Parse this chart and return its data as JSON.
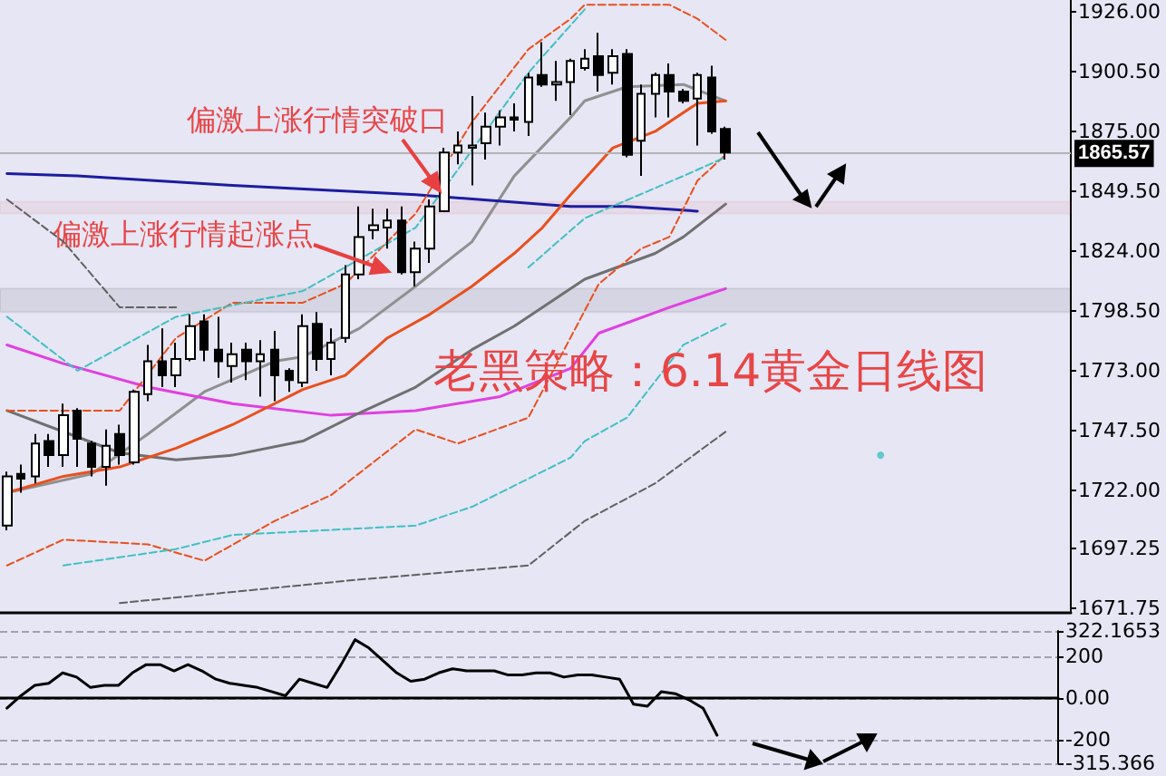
{
  "chart_data": [
    {
      "type": "candlestick",
      "title": "老黑策略：6.14黄金日线图",
      "annotations": [
        "偏激上涨行情突破口",
        "偏激上涨行情起涨点"
      ],
      "tick_labels": "y",
      "marker": "none",
      "categories": [
        null,
        null,
        null,
        null,
        null,
        null,
        null,
        null,
        null,
        null,
        null,
        null,
        null,
        null,
        null,
        null,
        null,
        null,
        null,
        null,
        null,
        null,
        null,
        null,
        null,
        null,
        null,
        null,
        null,
        null,
        null,
        null,
        null,
        null,
        null,
        null,
        null,
        null,
        null,
        null,
        null,
        null,
        null,
        null,
        null,
        null,
        null,
        null,
        null,
        null,
        null,
        null,
        null,
        null,
        null,
        null,
        null,
        null,
        null,
        null,
        null,
        null,
        null,
        null,
        null,
        null,
        null,
        null,
        null,
        null,
        null,
        null,
        null,
        null,
        null,
        null
      ],
      "ylim": [
        1670,
        1931
      ],
      "yticks": [
        {
          "value": 1926,
          "label": "1926.00"
        },
        {
          "value": 1900.5,
          "label": "1900.50"
        },
        {
          "value": 1875,
          "label": "1875.00"
        },
        {
          "value": 1849.5,
          "label": "1849.50"
        },
        {
          "value": 1824,
          "label": "1824.00"
        },
        {
          "value": 1798.5,
          "label": "1798.50"
        },
        {
          "value": 1773,
          "label": "1773.00"
        },
        {
          "value": 1747.5,
          "label": "1747.50"
        },
        {
          "value": 1722,
          "label": "1722.00"
        },
        {
          "value": 1697.25,
          "label": "1697.25"
        },
        {
          "value": 1671.75,
          "label": "1671.75"
        }
      ],
      "ref_lines": [
        {
          "axis": "y",
          "value": 1865.57,
          "label": "1865.57",
          "color": "#b4b4b4"
        }
      ],
      "bands": [
        {
          "axis": "y",
          "from": 1840,
          "to": 1845,
          "color": "#e84040"
        },
        {
          "axis": "y",
          "from": 1798,
          "to": 1808,
          "color": "#000000"
        }
      ],
      "series": [
        {
          "color": "#000000",
          "ohlc": [
            [
              1707,
              1730,
              1705,
              1728
            ],
            [
              1729,
              1733,
              1721,
              1727
            ],
            [
              1728,
              1746,
              1725,
              1742
            ],
            [
              1743,
              1746,
              1732,
              1737
            ],
            [
              1737,
              1759,
              1732,
              1754
            ],
            [
              1756,
              1757,
              1732,
              1744
            ],
            [
              1742,
              1743,
              1728,
              1732
            ],
            [
              1732,
              1748,
              1724,
              1741
            ],
            [
              1746,
              1750,
              1733,
              1737
            ],
            [
              1734,
              1765,
              1733,
              1764
            ],
            [
              1763,
              1784,
              1760,
              1777
            ],
            [
              1777,
              1791,
              1766,
              1771
            ],
            [
              1771,
              1785,
              1766,
              1778
            ],
            [
              1778,
              1797,
              1777,
              1792
            ],
            [
              1794,
              1797,
              1777,
              1782
            ],
            [
              1782,
              1796,
              1770,
              1777
            ],
            [
              1775,
              1785,
              1768,
              1780
            ],
            [
              1782,
              1785,
              1769,
              1777
            ],
            [
              1777,
              1786,
              1762,
              1780
            ],
            [
              1782,
              1790,
              1760,
              1771
            ],
            [
              1773,
              1774,
              1764,
              1769
            ],
            [
              1768,
              1797,
              1766,
              1792
            ],
            [
              1793,
              1798,
              1773,
              1778
            ],
            [
              1778,
              1791,
              1771,
              1785
            ],
            [
              1787,
              1818,
              1785,
              1814
            ],
            [
              1814,
              1843,
              1812,
              1830
            ],
            [
              1833,
              1842,
              1829,
              1835
            ],
            [
              1834,
              1842,
              1825,
              1837
            ],
            [
              1837,
              1843,
              1814,
              1815
            ],
            [
              1815,
              1828,
              1809,
              1825
            ],
            [
              1825,
              1846,
              1819,
              1843
            ],
            [
              1841,
              1868,
              1841,
              1866
            ],
            [
              1866,
              1875,
              1861,
              1869
            ],
            [
              1868,
              1890,
              1852,
              1869
            ],
            [
              1870,
              1883,
              1863,
              1877
            ],
            [
              1877,
              1884,
              1869,
              1881
            ],
            [
              1881,
              1887,
              1875,
              1880
            ],
            [
              1879,
              1900,
              1873,
              1898
            ],
            [
              1899,
              1913,
              1894,
              1895
            ],
            [
              1895,
              1905,
              1888,
              1896
            ],
            [
              1896,
              1906,
              1882,
              1905
            ],
            [
              1902,
              1910,
              1901,
              1906
            ],
            [
              1907,
              1917,
              1892,
              1899
            ],
            [
              1900,
              1910,
              1895,
              1907
            ],
            [
              1908,
              1910,
              1864,
              1865
            ],
            [
              1871,
              1895,
              1856,
              1891
            ],
            [
              1891,
              1900,
              1881,
              1899
            ],
            [
              1899,
              1904,
              1881,
              1892
            ],
            [
              1892,
              1893,
              1887,
              1888
            ],
            [
              1889,
              1900,
              1869,
              1899
            ],
            [
              1898,
              1903,
              1874,
              1875
            ],
            [
              1876,
              1877,
              1863,
              1866
            ],
            null,
            null,
            null,
            null,
            null,
            null,
            null,
            null,
            null,
            null,
            null,
            null,
            null,
            null,
            null,
            null,
            null,
            null,
            null,
            null,
            null,
            null,
            null,
            null
          ]
        },
        {
          "type": "line",
          "color": "#909090",
          "line_style": "solid",
          "values": [
            1721,
            null,
            null,
            null,
            null,
            null,
            1729,
            null,
            null,
            null,
            1746,
            null,
            null,
            null,
            1764,
            null,
            null,
            null,
            null,
            1777,
            null,
            1779,
            null,
            null,
            null,
            1791,
            null,
            null,
            null,
            1809,
            null,
            null,
            null,
            1828,
            null,
            null,
            1856,
            null,
            null,
            null,
            1881,
            1888,
            null,
            null,
            1894,
            null,
            null,
            null,
            1895,
            null,
            null,
            1888,
            null,
            null,
            null,
            null,
            null,
            null,
            null,
            null,
            null,
            null,
            null,
            null,
            null,
            null,
            null,
            null,
            null,
            null,
            null,
            null,
            null,
            null,
            null,
            null
          ]
        },
        {
          "type": "line",
          "color": "#1c1ca0",
          "line_style": "solid",
          "values": [
            1857,
            null,
            null,
            null,
            null,
            1856,
            null,
            null,
            null,
            null,
            null,
            null,
            null,
            null,
            null,
            null,
            1852,
            null,
            null,
            null,
            null,
            null,
            null,
            null,
            null,
            null,
            null,
            null,
            null,
            1848,
            null,
            null,
            null,
            null,
            null,
            null,
            null,
            null,
            null,
            null,
            1843,
            null,
            null,
            null,
            1843,
            null,
            null,
            null,
            null,
            1841,
            null,
            null,
            null,
            null,
            null,
            null,
            null,
            null,
            null,
            null,
            null,
            null,
            null,
            null,
            null,
            null,
            null,
            null,
            null,
            null,
            null,
            null,
            null,
            null,
            null,
            null
          ]
        },
        {
          "type": "line",
          "color": "#e040e0",
          "line_style": "solid",
          "values": [
            1784,
            null,
            null,
            null,
            1776,
            null,
            null,
            null,
            null,
            null,
            1766,
            null,
            null,
            null,
            null,
            null,
            1759,
            null,
            null,
            null,
            null,
            null,
            null,
            1754,
            null,
            null,
            null,
            null,
            null,
            1756,
            null,
            null,
            null,
            null,
            null,
            1762,
            null,
            null,
            null,
            null,
            1774,
            null,
            1789,
            null,
            null,
            null,
            null,
            1800,
            null,
            null,
            null,
            1808,
            null,
            null,
            null,
            null,
            null,
            null,
            null,
            null,
            null,
            null,
            null,
            null,
            null,
            null,
            null,
            null,
            null,
            null,
            null,
            null,
            null,
            null,
            null,
            null
          ]
        },
        {
          "type": "line",
          "color": "#707070",
          "line_style": "solid",
          "values": [
            1756,
            null,
            null,
            null,
            1747,
            null,
            null,
            null,
            1738,
            null,
            null,
            null,
            1735,
            null,
            null,
            null,
            1737,
            null,
            null,
            null,
            null,
            1743,
            null,
            null,
            null,
            1755,
            null,
            null,
            null,
            1766,
            null,
            null,
            null,
            1782,
            null,
            null,
            1792,
            null,
            null,
            null,
            null,
            1812,
            null,
            null,
            null,
            null,
            1823,
            null,
            1830,
            null,
            null,
            1844,
            null,
            null,
            null,
            null,
            null,
            null,
            null,
            null,
            null,
            null,
            null,
            null,
            null,
            null,
            null,
            null,
            null,
            null,
            null,
            null,
            null,
            null,
            null,
            null
          ]
        },
        {
          "type": "line",
          "color": "#e8501c",
          "line_style": "solid",
          "values": [
            1721,
            null,
            null,
            null,
            1728,
            null,
            null,
            null,
            1732,
            null,
            null,
            null,
            1740,
            null,
            null,
            null,
            1750,
            null,
            null,
            null,
            null,
            1765,
            null,
            null,
            1771,
            null,
            null,
            1787,
            null,
            null,
            1797,
            null,
            null,
            1809,
            null,
            null,
            1823,
            null,
            1834,
            null,
            1848,
            null,
            null,
            1868,
            null,
            null,
            1875,
            null,
            null,
            1887,
            null,
            1888,
            null,
            null,
            null,
            null,
            null,
            null,
            null,
            null,
            null,
            null,
            null,
            null,
            null,
            null,
            null,
            null,
            null,
            null,
            null,
            null,
            null,
            null,
            null,
            null
          ]
        },
        {
          "type": "line",
          "color": "#e8501c",
          "line_style": "dashed",
          "values": [
            1756,
            null,
            null,
            null,
            null,
            null,
            null,
            null,
            1756,
            null,
            null,
            null,
            1787,
            null,
            null,
            null,
            1802,
            null,
            null,
            null,
            null,
            1802,
            null,
            null,
            1810,
            null,
            null,
            null,
            null,
            1840,
            null,
            null,
            null,
            1879,
            null,
            null,
            null,
            1910,
            null,
            null,
            1923,
            1929,
            null,
            null,
            null,
            null,
            null,
            1929,
            null,
            1923,
            null,
            1914,
            null,
            null,
            null,
            null,
            null,
            null,
            null,
            null,
            null,
            null,
            null,
            null,
            null,
            null,
            null,
            null,
            null,
            null,
            null,
            null,
            null,
            null,
            null,
            null
          ]
        },
        {
          "type": "line",
          "color": "#e8501c",
          "line_style": "dashed",
          "values": [
            1690,
            null,
            null,
            null,
            1701,
            null,
            null,
            null,
            null,
            null,
            1699,
            null,
            null,
            null,
            1692,
            null,
            null,
            null,
            null,
            1709,
            null,
            null,
            null,
            1720,
            null,
            null,
            null,
            null,
            null,
            1748,
            null,
            null,
            1742,
            null,
            null,
            null,
            null,
            1753,
            null,
            null,
            null,
            null,
            1810,
            null,
            null,
            1825,
            null,
            1830,
            null,
            1854,
            null,
            1865,
            null,
            null,
            null,
            null,
            null,
            null,
            null,
            null,
            null,
            null,
            null,
            null,
            null,
            null,
            null,
            null,
            null,
            null,
            null,
            null,
            null,
            null,
            null,
            null
          ]
        },
        {
          "type": "line",
          "color": "#40c0c0",
          "line_style": "dashed",
          "values": [
            1796,
            null,
            null,
            null,
            null,
            1773,
            null,
            null,
            null,
            null,
            null,
            null,
            1796,
            null,
            null,
            null,
            null,
            null,
            null,
            null,
            null,
            1807,
            null,
            null,
            null,
            null,
            null,
            null,
            null,
            1834,
            null,
            null,
            null,
            1867,
            null,
            null,
            null,
            1900,
            null,
            null,
            null,
            1927,
            null,
            null,
            null,
            null,
            null,
            null,
            null,
            null,
            null,
            null,
            null,
            null,
            null,
            null,
            null,
            null,
            null,
            null,
            null,
            null,
            null,
            null,
            null,
            null,
            null,
            null,
            null,
            null,
            null,
            null,
            null,
            null,
            null,
            null
          ]
        },
        {
          "type": "line",
          "color": "#40c0c0",
          "line_style": "dashed",
          "values": [
            null,
            null,
            null,
            null,
            null,
            null,
            null,
            null,
            null,
            null,
            null,
            null,
            null,
            null,
            null,
            null,
            null,
            null,
            null,
            null,
            null,
            null,
            null,
            null,
            null,
            null,
            null,
            null,
            null,
            null,
            null,
            null,
            null,
            null,
            null,
            null,
            null,
            1817,
            null,
            null,
            null,
            1838,
            null,
            null,
            null,
            null,
            null,
            null,
            1856,
            null,
            null,
            1864,
            null,
            null,
            null,
            null,
            null,
            null,
            null,
            null,
            null,
            null,
            null,
            null,
            null,
            null,
            null,
            null,
            null,
            null,
            null,
            null,
            null,
            null,
            null,
            null
          ]
        },
        {
          "type": "line",
          "color": "#40c0c0",
          "line_style": "dashed",
          "values": [
            null,
            null,
            null,
            null,
            1690,
            null,
            null,
            null,
            null,
            null,
            null,
            null,
            1697,
            null,
            null,
            null,
            1703,
            null,
            null,
            null,
            null,
            null,
            null,
            null,
            null,
            null,
            null,
            null,
            null,
            1707,
            null,
            null,
            null,
            1715,
            null,
            null,
            null,
            null,
            null,
            null,
            1736,
            1743,
            null,
            null,
            1753,
            null,
            null,
            null,
            1784,
            null,
            null,
            1793,
            null,
            null,
            null,
            null,
            null,
            null,
            null,
            null,
            null,
            null,
            null,
            null,
            null,
            null,
            null,
            null,
            null,
            null,
            null,
            null,
            null,
            null,
            null,
            null
          ]
        },
        {
          "type": "line",
          "color": "#606060",
          "line_style": "dashed",
          "values": [
            null,
            null,
            null,
            null,
            null,
            null,
            null,
            null,
            1674,
            null,
            null,
            null,
            null,
            null,
            null,
            null,
            null,
            null,
            null,
            null,
            null,
            null,
            null,
            null,
            null,
            1684,
            null,
            null,
            null,
            null,
            null,
            null,
            null,
            null,
            null,
            null,
            null,
            1690,
            null,
            null,
            null,
            1709,
            null,
            null,
            null,
            null,
            1725,
            null,
            null,
            null,
            null,
            1747,
            null,
            null,
            null,
            null,
            null,
            null,
            null,
            null,
            null,
            null,
            null,
            null,
            null,
            null,
            null,
            null,
            null,
            null,
            null,
            null,
            null,
            null,
            null,
            null
          ]
        },
        {
          "type": "line",
          "color": "#606060",
          "line_style": "dashed",
          "values": [
            1846,
            null,
            null,
            null,
            1828,
            null,
            null,
            null,
            1800,
            null,
            null,
            null,
            1800,
            null,
            null,
            null,
            null,
            null,
            null,
            null,
            null,
            null,
            null,
            null,
            null,
            null,
            null,
            null,
            null,
            null,
            null,
            null,
            null,
            null,
            null,
            null,
            null,
            null,
            null,
            null,
            null,
            null,
            null,
            null,
            null,
            null,
            null,
            null,
            null,
            null,
            null,
            null,
            null,
            null,
            null,
            null,
            null,
            null,
            null,
            null,
            null,
            null,
            null,
            null,
            null,
            null,
            null,
            null,
            null,
            null,
            null,
            null,
            null,
            null,
            null,
            null
          ]
        },
        {
          "type": "scatter",
          "color": "#40c0c0",
          "marker": "circle",
          "values": [
            null,
            null,
            null,
            null,
            null,
            null,
            null,
            null,
            null,
            null,
            null,
            null,
            null,
            null,
            null,
            null,
            null,
            null,
            null,
            null,
            null,
            null,
            null,
            null,
            null,
            null,
            null,
            null,
            null,
            null,
            null,
            null,
            null,
            null,
            null,
            null,
            null,
            null,
            null,
            null,
            null,
            null,
            null,
            null,
            null,
            null,
            null,
            null,
            null,
            null,
            null,
            null,
            null,
            null,
            null,
            null,
            null,
            null,
            null,
            null,
            null,
            null,
            1737,
            null,
            null,
            null,
            null,
            null,
            null,
            null,
            null,
            null,
            null,
            null,
            null,
            null
          ]
        }
      ]
    },
    {
      "type": "line",
      "tick_labels": "y",
      "marker": "none",
      "grid": "y",
      "categories": [
        null,
        null,
        null,
        null,
        null,
        null,
        null,
        null,
        null,
        null,
        null,
        null,
        null,
        null,
        null,
        null,
        null,
        null,
        null,
        null,
        null,
        null,
        null,
        null,
        null,
        null,
        null,
        null,
        null,
        null,
        null,
        null,
        null,
        null,
        null,
        null,
        null,
        null,
        null,
        null,
        null,
        null,
        null,
        null,
        null,
        null,
        null,
        null,
        null,
        null,
        null,
        null,
        null,
        null,
        null,
        null,
        null,
        null,
        null,
        null,
        null,
        null,
        null,
        null,
        null,
        null,
        null,
        null,
        null,
        null,
        null,
        null,
        null,
        null,
        null,
        null
      ],
      "ylim": [
        -315.366,
        322.1653
      ],
      "yticks": [
        {
          "value": 322.1653,
          "label": "322.1653"
        },
        200,
        {
          "value": 0,
          "label": "0.00"
        },
        -200,
        {
          "value": -315.366,
          "label": "-315.366"
        }
      ],
      "series": [
        {
          "color": "#000000",
          "values": [
            -50,
            10,
            60,
            70,
            120,
            100,
            50,
            60,
            60,
            120,
            160,
            160,
            130,
            160,
            130,
            90,
            70,
            60,
            50,
            30,
            10,
            90,
            70,
            50,
            160,
            280,
            240,
            180,
            120,
            80,
            90,
            120,
            140,
            130,
            130,
            130,
            110,
            110,
            120,
            120,
            100,
            110,
            110,
            100,
            90,
            -30,
            -40,
            30,
            20,
            -10,
            -50,
            -180,
            null,
            null,
            null,
            null,
            null,
            null,
            null,
            null,
            null,
            null,
            null,
            null,
            null,
            null,
            null,
            null,
            null,
            null,
            null,
            null,
            null,
            null,
            null,
            null
          ]
        }
      ]
    }
  ]
}
